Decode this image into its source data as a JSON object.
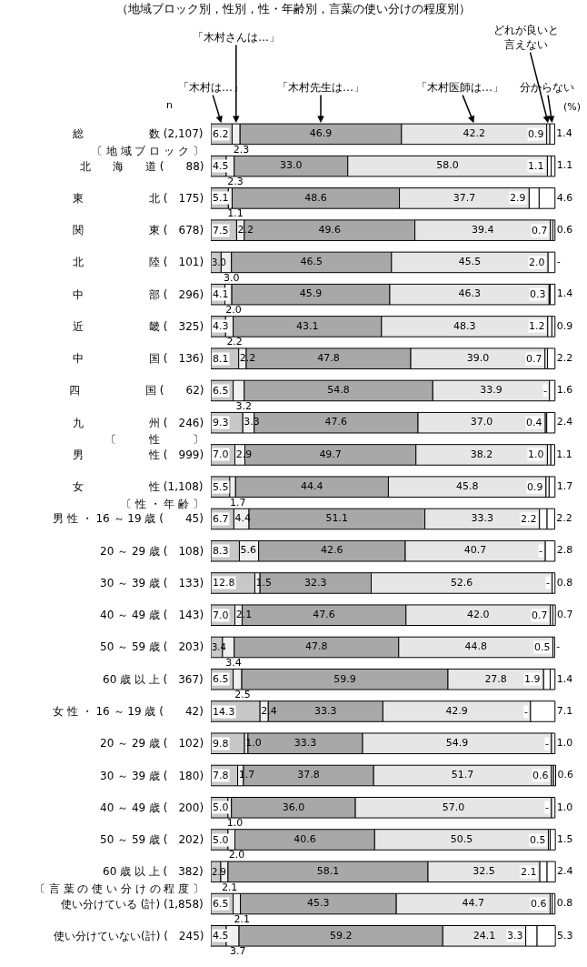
{
  "chart_data": {
    "type": "bar",
    "orientation": "horizontal",
    "stacked": true,
    "legend": false,
    "title": "（地域ブロック別，性別，性・年齢別，言葉の使い分けの程度別）",
    "annotations": [
      "n",
      "(%)"
    ],
    "categories": [
      "総　　　　　　数 (2,107)",
      "〔 地 域 ブ ロ ッ ク 〕",
      "北　　海　　道 (　　88)",
      "東　　　　　　北 (　175)",
      "関　　　　　　東 (　678)",
      "北　　　　　　陸 (　101)",
      "中　　　　　　部 (　296)",
      "近　　　　　　畿 (　325)",
      "中　　　　　　国 (　136)",
      "四　　　　　　国 (　　62)",
      "九　　　　　　州 (　246)",
      "〔　　　性　　　〕",
      "男　　　　　　性 (　999)",
      "女　　　　　　性 (1,108)",
      "〔 性 ・ 年 齢 〕",
      "男 性 ・ 16 ～ 19 歳 (　　45)",
      "20 ～ 29 歳 (　108)",
      "30 ～ 39 歳 (　133)",
      "40 ～ 49 歳 (　143)",
      "50 ～ 59 歳 (　203)",
      "60 歳 以 上 (　367)",
      "女 性 ・ 16 ～ 19 歳 (　　42)",
      "20 ～ 29 歳 (　102)",
      "30 ～ 39 歳 (　180)",
      "40 ～ 49 歳 (　200)",
      "50 ～ 59 歳 (　202)",
      "60 歳 以 上 (　382)",
      "〔 言 葉 の 使 い 分 け の 程 度 〕",
      "使い分けている (計) (1,858)",
      "使い分けていない(計) (　245)"
    ],
    "series": [
      {
        "name": "「木村は…」",
        "color": "#c8c8c8",
        "values": [
          6.2,
          null,
          4.5,
          5.1,
          7.5,
          3.0,
          4.1,
          4.3,
          8.1,
          6.5,
          9.3,
          null,
          7.0,
          5.5,
          null,
          6.7,
          8.3,
          12.8,
          7.0,
          3.4,
          6.5,
          14.3,
          9.8,
          7.8,
          5.0,
          5.0,
          2.9,
          null,
          6.5,
          4.5
        ],
        "value_labels": [
          "6.2",
          null,
          "4.5",
          "5.1",
          "7.5",
          "3.0",
          "4.1",
          "4.3",
          "8.1",
          "6.5",
          "9.3",
          null,
          "7.0",
          "5.5",
          null,
          "6.7",
          "8.3",
          "12.8",
          "7.0",
          "3.4",
          "6.5",
          "14.3",
          "9.8",
          "7.8",
          "5.0",
          "5.0",
          "2.9",
          null,
          "6.5",
          "4.5"
        ]
      },
      {
        "name": "「木村さんは…」",
        "color": "#f0f0f0",
        "values": [
          2.3,
          null,
          2.3,
          1.1,
          2.2,
          3.0,
          2.0,
          2.2,
          2.2,
          3.2,
          3.3,
          null,
          2.9,
          1.7,
          null,
          4.4,
          5.6,
          1.5,
          2.1,
          3.4,
          2.5,
          2.4,
          1.0,
          1.7,
          1.0,
          2.0,
          2.1,
          null,
          2.1,
          3.7
        ],
        "value_labels": [
          "2.3",
          null,
          "2.3",
          "1.1",
          "2.2",
          "3.0",
          "2.0",
          "2.2",
          "2.2",
          "3.2",
          "3.3",
          null,
          "2.9",
          "1.7",
          null,
          "4.4",
          "5.6",
          "1.5",
          "2.1",
          "3.4",
          "2.5",
          "2.4",
          "1.0",
          "1.7",
          "1.0",
          "2.0",
          "2.1",
          null,
          "2.1",
          "3.7"
        ]
      },
      {
        "name": "「木村先生は…」",
        "color": "#a8a8a8",
        "values": [
          46.9,
          null,
          33.0,
          48.6,
          49.6,
          46.5,
          45.9,
          43.1,
          47.8,
          54.8,
          47.6,
          null,
          49.7,
          44.4,
          null,
          51.1,
          42.6,
          32.3,
          47.6,
          47.8,
          59.9,
          33.3,
          33.3,
          37.8,
          36.0,
          40.6,
          58.1,
          null,
          45.3,
          59.2
        ],
        "value_labels": [
          "46.9",
          null,
          "33.0",
          "48.6",
          "49.6",
          "46.5",
          "45.9",
          "43.1",
          "47.8",
          "54.8",
          "47.6",
          null,
          "49.7",
          "44.4",
          null,
          "51.1",
          "42.6",
          "32.3",
          "47.6",
          "47.8",
          "59.9",
          "33.3",
          "33.3",
          "37.8",
          "36.0",
          "40.6",
          "58.1",
          null,
          "45.3",
          "59.2"
        ]
      },
      {
        "name": "「木村医師は…」",
        "color": "#e6e6e6",
        "values": [
          42.2,
          null,
          58.0,
          37.7,
          39.4,
          45.5,
          46.3,
          48.3,
          39.0,
          33.9,
          37.0,
          null,
          38.2,
          45.8,
          null,
          33.3,
          40.7,
          52.6,
          42.0,
          44.8,
          27.8,
          42.9,
          54.9,
          51.7,
          57.0,
          50.5,
          32.5,
          null,
          44.7,
          24.1
        ],
        "value_labels": [
          "42.2",
          null,
          "58.0",
          "37.7",
          "39.4",
          "45.5",
          "46.3",
          "48.3",
          "39.0",
          "33.9",
          "37.0",
          null,
          "38.2",
          "45.8",
          null,
          "33.3",
          "40.7",
          "52.6",
          "42.0",
          "44.8",
          "27.8",
          "42.9",
          "54.9",
          "51.7",
          "57.0",
          "50.5",
          "32.5",
          null,
          "44.7",
          "24.1"
        ]
      },
      {
        "name": "どれが良いと言えない",
        "color": "#ffffff",
        "values": [
          0.9,
          null,
          1.1,
          2.9,
          0.7,
          2.0,
          0.3,
          1.2,
          0.7,
          0,
          0.4,
          null,
          1.0,
          0.9,
          null,
          2.2,
          0,
          0,
          0.7,
          0.5,
          1.9,
          0,
          0,
          0.6,
          0,
          0.5,
          2.1,
          null,
          0.6,
          3.3
        ],
        "value_labels": [
          "0.9",
          null,
          "1.1",
          "2.9",
          "0.7",
          "2.0",
          "0.3",
          "1.2",
          "0.7",
          "-",
          "0.4",
          null,
          "1.0",
          "0.9",
          null,
          "2.2",
          "-",
          "-",
          "0.7",
          "0.5",
          "1.9",
          "-",
          "-",
          "0.6",
          "-",
          "0.5",
          "2.1",
          null,
          "0.6",
          "3.3"
        ]
      },
      {
        "name": "分からない",
        "color": "#ffffff",
        "values": [
          1.4,
          null,
          1.1,
          4.6,
          0.6,
          0,
          1.4,
          0.9,
          2.2,
          1.6,
          2.4,
          null,
          1.1,
          1.7,
          null,
          2.2,
          2.8,
          0.8,
          0.7,
          0,
          1.4,
          7.1,
          1.0,
          0.6,
          1.0,
          1.5,
          2.4,
          null,
          0.8,
          5.3
        ],
        "value_labels": [
          "1.4",
          null,
          "1.1",
          "4.6",
          "0.6",
          "-",
          "1.4",
          "0.9",
          "2.2",
          "1.6",
          "2.4",
          null,
          "1.1",
          "1.7",
          null,
          "2.2",
          "2.8",
          "0.8",
          "0.7",
          "-",
          "1.4",
          "7.1",
          "1.0",
          "0.6",
          "1.0",
          "1.5",
          "2.4",
          null,
          "0.8",
          "5.3"
        ]
      }
    ]
  }
}
